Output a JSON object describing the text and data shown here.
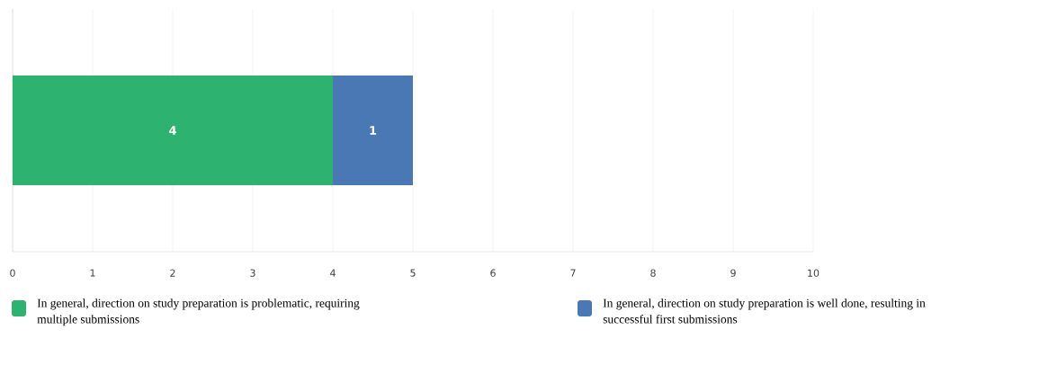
{
  "chart_data": {
    "type": "bar",
    "orientation": "horizontal",
    "stacked": true,
    "categories": [
      null
    ],
    "series": [
      {
        "name": "In general, direction on study preparation is problematic, requiring multiple submissions",
        "color": "#2db36f",
        "values": [
          4
        ]
      },
      {
        "name": "In general, direction on study preparation is well done, resulting in successful first submissions",
        "color": "#4a78b5",
        "values": [
          1
        ]
      }
    ],
    "xlim": [
      0,
      10
    ],
    "xticks": [
      0,
      1,
      2,
      3,
      4,
      5,
      6,
      7,
      8,
      9,
      10
    ],
    "grid": "x",
    "legend": "bottom",
    "data_labels": true
  }
}
